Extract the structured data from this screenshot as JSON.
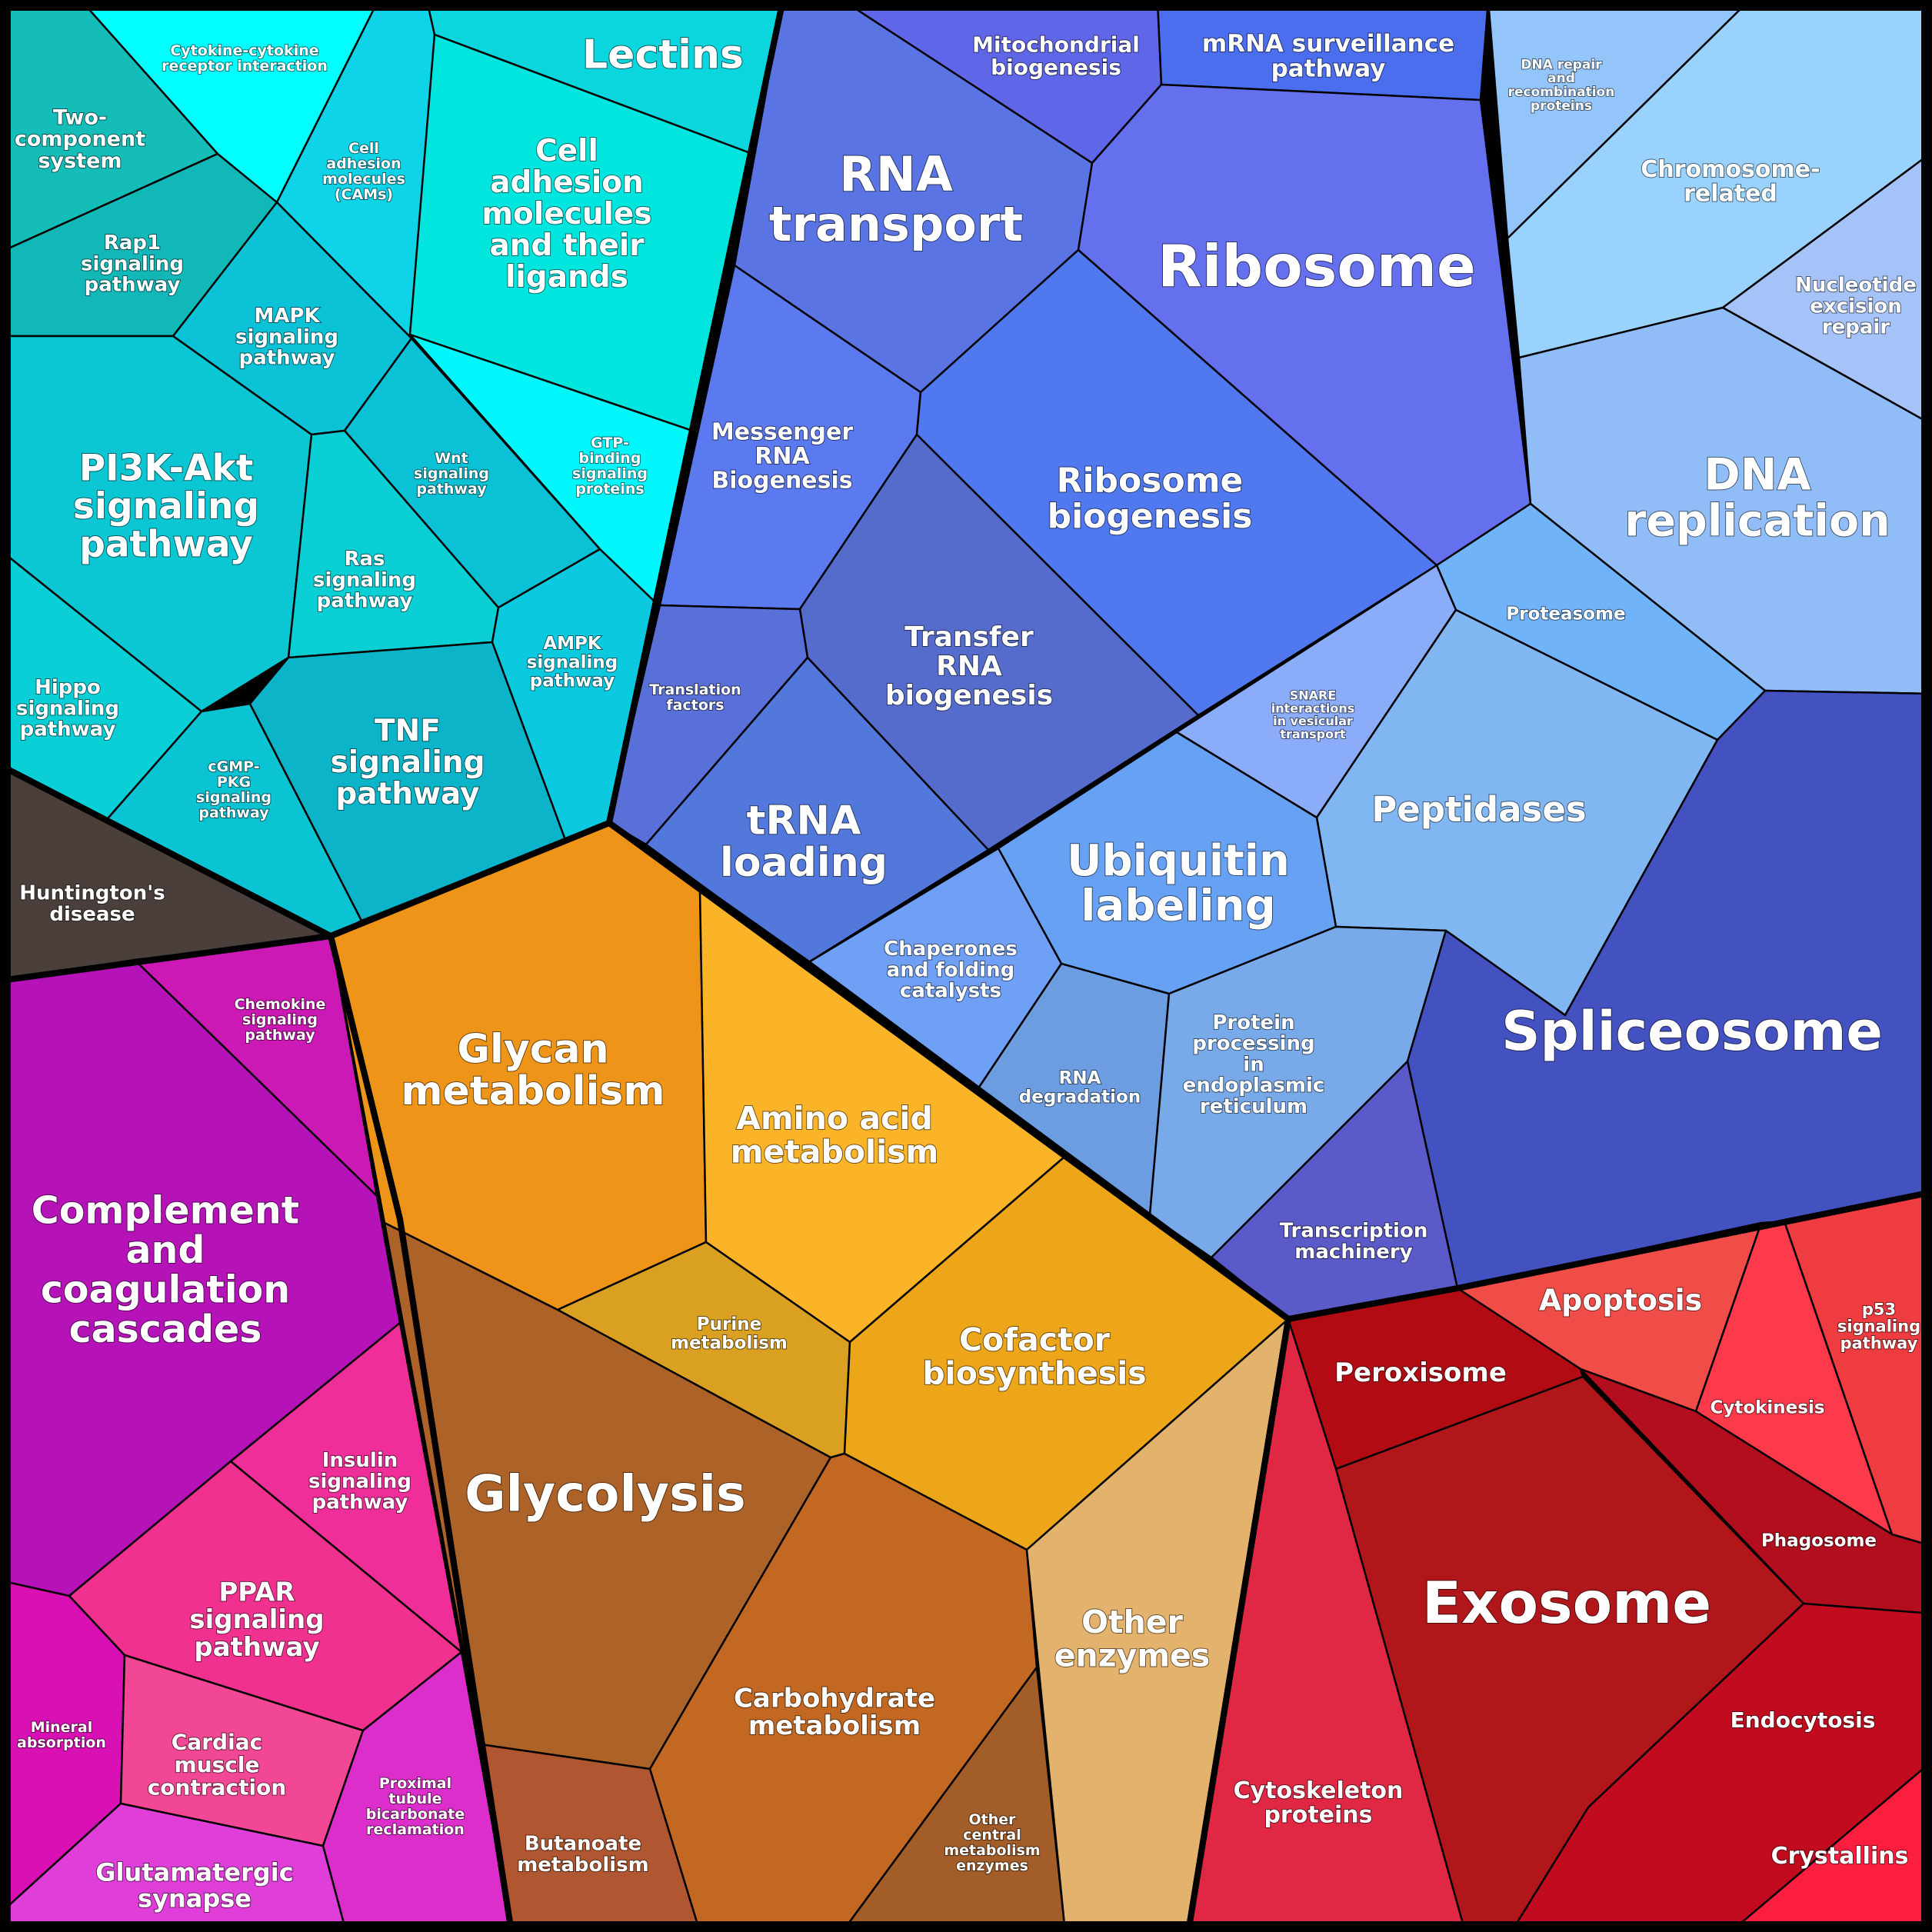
{
  "groups": [
    {
      "id": "signaling-group",
      "cells": [
        {
          "label": [
            "Two-",
            "component",
            "system"
          ],
          "color": "#14bdb8"
        },
        {
          "label": [
            "Rap1",
            "signaling",
            "pathway"
          ],
          "color": "#12b8b8"
        },
        {
          "label": [
            "Cytokine-cytokine",
            "receptor interaction"
          ],
          "color": "#00ffff"
        },
        {
          "label": [
            "Cell",
            "adhesion",
            "molecules",
            "(CAMs)"
          ],
          "color": "#0fd3e6"
        },
        {
          "label": [
            "Lectins"
          ],
          "color": "#0bd6de"
        },
        {
          "label": [
            "Cell",
            "adhesion",
            "molecules",
            "and their",
            "ligands"
          ],
          "color": "#00e6de"
        },
        {
          "label": [
            "MAPK",
            "signaling",
            "pathway"
          ],
          "color": "#0bc2d6"
        },
        {
          "label": [
            "GTP-",
            "binding",
            "signaling",
            "proteins"
          ],
          "color": "#00f8fc"
        },
        {
          "label": [
            "PI3K-Akt",
            "signaling",
            "pathway"
          ],
          "color": "#0ac7d3"
        },
        {
          "label": [
            "Wnt",
            "signaling",
            "pathway"
          ],
          "color": "#0bc1d5"
        },
        {
          "label": [
            "Ras",
            "signaling",
            "pathway"
          ],
          "color": "#0ad0d6"
        },
        {
          "label": [
            "AMPK",
            "signaling",
            "pathway"
          ],
          "color": "#0bcae0"
        },
        {
          "label": [
            "Hippo",
            "signaling",
            "pathway"
          ],
          "color": "#0acfd6"
        },
        {
          "label": [
            "cGMP-",
            "PKG",
            "signaling",
            "pathway"
          ],
          "color": "#0ac4d4"
        },
        {
          "label": [
            "TNF",
            "signaling",
            "pathway"
          ],
          "color": "#0bb4c8"
        }
      ]
    },
    {
      "id": "disease-group",
      "cells": [
        {
          "label": [
            "Huntington's",
            "disease"
          ],
          "color": "#4a3f3a"
        }
      ]
    },
    {
      "id": "immune-group",
      "cells": [
        {
          "label": [
            "Chemokine",
            "signaling",
            "pathway"
          ],
          "color": "#cc18b5"
        },
        {
          "label": [
            "Complement",
            "and",
            "coagulation",
            "cascades"
          ],
          "color": "#b512b8"
        },
        {
          "label": [
            "Insulin",
            "signaling",
            "pathway"
          ],
          "color": "#f02e9a"
        },
        {
          "label": [
            "PPAR",
            "signaling",
            "pathway"
          ],
          "color": "#f0318f"
        },
        {
          "label": [
            "Mineral",
            "absorption"
          ],
          "color": "#d910b3"
        },
        {
          "label": [
            "Cardiac",
            "muscle",
            "contraction"
          ],
          "color": "#f24794"
        },
        {
          "label": [
            "Proximal",
            "tubule",
            "bicarbonate",
            "reclamation"
          ],
          "color": "#dc2ecb"
        },
        {
          "label": [
            "Glutamatergic",
            "synapse"
          ],
          "color": "#e03ed9"
        }
      ]
    },
    {
      "id": "metabolism-group",
      "cells": [
        {
          "label": [
            "Glycan",
            "metabolism"
          ],
          "color": "#ee9418"
        },
        {
          "label": [
            "Amino acid",
            "metabolism"
          ],
          "color": "#fbb428"
        },
        {
          "label": [
            "Purine",
            "metabolism"
          ],
          "color": "#daa022"
        },
        {
          "label": [
            "Cofactor",
            "biosynthesis"
          ],
          "color": "#eda51a"
        },
        {
          "label": [
            "Glycolysis"
          ],
          "color": "#ad6228"
        },
        {
          "label": [
            "Carbohydrate",
            "metabolism"
          ],
          "color": "#c26822"
        },
        {
          "label": [
            "Butanoate",
            "metabolism"
          ],
          "color": "#b05630"
        },
        {
          "label": [
            "Other",
            "central",
            "metabolism",
            "enzymes"
          ],
          "color": "#a25d28"
        },
        {
          "label": [
            "Other",
            "enzymes"
          ],
          "color": "#e3b36e"
        }
      ]
    },
    {
      "id": "genetic-info-group",
      "cells": [
        {
          "label": [
            "Mitochondrial",
            "biogenesis"
          ],
          "color": "#6066e8"
        },
        {
          "label": [
            "mRNA surveillance",
            "pathway"
          ],
          "color": "#4a6eee"
        },
        {
          "label": [
            "RNA",
            "transport"
          ],
          "color": "#5a74e3"
        },
        {
          "label": [
            "Ribosome"
          ],
          "color": "#6570ee"
        },
        {
          "label": [
            "Messenger",
            "RNA",
            "Biogenesis"
          ],
          "color": "#5c7af0"
        },
        {
          "label": [
            "Ribosome",
            "biogenesis"
          ],
          "color": "#5079f0"
        },
        {
          "label": [
            "Transfer",
            "RNA",
            "biogenesis"
          ],
          "color": "#566ccc"
        },
        {
          "label": [
            "Translation",
            "factors"
          ],
          "color": "#5870d8"
        },
        {
          "label": [
            "tRNA",
            "loading"
          ],
          "color": "#5378dc"
        },
        {
          "label": [
            "DNA repair",
            "and",
            "recombination",
            "proteins"
          ],
          "color": "#94c5fa"
        },
        {
          "label": [
            "Chromosome-",
            "related"
          ],
          "color": "#99d2fd"
        },
        {
          "label": [
            "Nucleotide",
            "excision",
            "repair"
          ],
          "color": "#a5c3f8"
        },
        {
          "label": [
            "DNA",
            "replication"
          ],
          "color": "#90bdf7"
        },
        {
          "label": [
            "Proteasome"
          ],
          "color": "#70b3f8"
        },
        {
          "label": [
            "SNARE",
            "interactions",
            "in vesicular",
            "transport"
          ],
          "color": "#8aacf9"
        },
        {
          "label": [
            "Peptidases"
          ],
          "color": "#80b6f2"
        },
        {
          "label": [
            "Ubiquitin",
            "labeling"
          ],
          "color": "#67a1f4"
        },
        {
          "label": [
            "Chaperones",
            "and folding",
            "catalysts"
          ],
          "color": "#70a0f5"
        },
        {
          "label": [
            "RNA",
            "degradation"
          ],
          "color": "#6b9de0"
        },
        {
          "label": [
            "Protein",
            "processing",
            "in",
            "endoplasmic",
            "reticulum"
          ],
          "color": "#78aaea"
        },
        {
          "label": [
            "Spliceosome"
          ],
          "color": "#4351c1"
        },
        {
          "label": [
            "Transcription",
            "machinery"
          ],
          "color": "#5a5ac8"
        }
      ]
    },
    {
      "id": "cellular-process-group",
      "cells": [
        {
          "label": [
            "Apoptosis"
          ],
          "color": "#f04c48"
        },
        {
          "label": [
            "Cytokinesis"
          ],
          "color": "#fc3a4c"
        },
        {
          "label": [
            "p53",
            "signaling",
            "pathway"
          ],
          "color": "#ef3c40"
        },
        {
          "label": [
            "Peroxisome"
          ],
          "color": "#b30b14"
        },
        {
          "label": [
            "Exosome"
          ],
          "color": "#b0161a"
        },
        {
          "label": [
            "Phagosome"
          ],
          "color": "#b30e1e"
        },
        {
          "label": [
            "Cytoskeleton",
            "proteins"
          ],
          "color": "#e02845"
        },
        {
          "label": [
            "Endocytosis"
          ],
          "color": "#c20b1e"
        },
        {
          "label": [
            "Crystallins"
          ],
          "color": "#fc1e3e"
        }
      ]
    }
  ]
}
